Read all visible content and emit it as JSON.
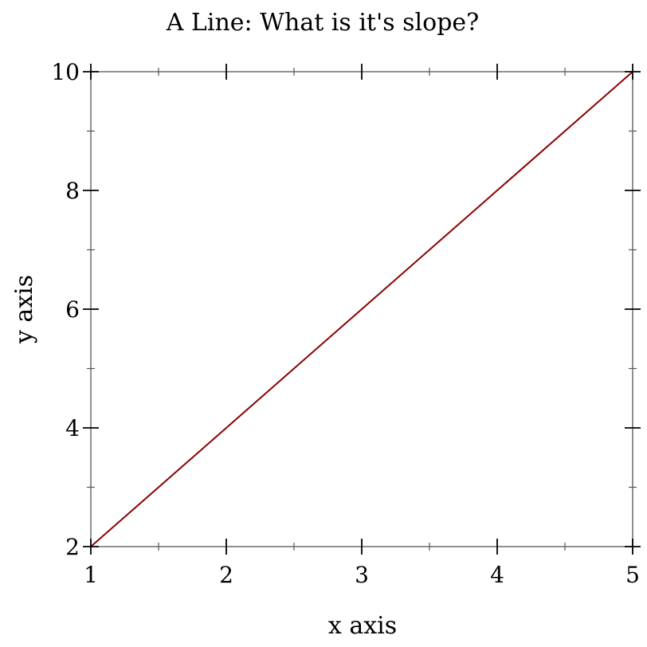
{
  "chart_data": {
    "type": "line",
    "title": "A Line: What is it's slope?",
    "xlabel": "x axis",
    "ylabel": "y axis",
    "xlim": [
      1,
      5
    ],
    "ylim": [
      2,
      10
    ],
    "x_ticks": [
      1,
      2,
      3,
      4,
      5
    ],
    "y_ticks": [
      2,
      4,
      6,
      8,
      10
    ],
    "x_minor_ticks": [
      1.5,
      2.5,
      3.5,
      4.5
    ],
    "y_minor_ticks": [
      3,
      5,
      7,
      9
    ],
    "grid": false,
    "series": [
      {
        "x": [
          1,
          5
        ],
        "y": [
          2,
          10
        ],
        "color": "#8b0000"
      }
    ]
  }
}
